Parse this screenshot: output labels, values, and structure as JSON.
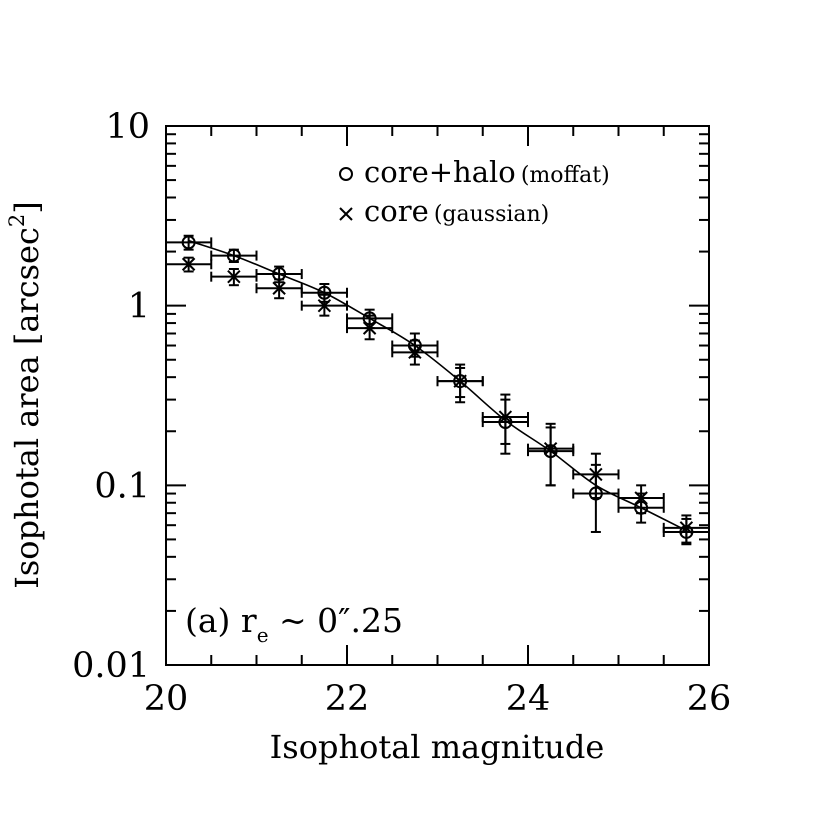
{
  "chart_data": {
    "type": "scatter",
    "xlabel": "Isophotal magnitude",
    "ylabel": "Isophotal area [arcsec",
    "ylabel_sup": "2",
    "ylabel_close": "]",
    "xlim": [
      20,
      26
    ],
    "ylim": [
      0.01,
      10
    ],
    "yscale": "log",
    "x_ticks": [
      "20",
      "22",
      "24",
      "26"
    ],
    "y_ticks": [
      "0.01",
      "0.1",
      "1",
      "10"
    ],
    "annotation": {
      "prefix": "(a) r",
      "subscript": "e",
      "suffix": " ~ 0″.25"
    },
    "legend": [
      {
        "symbol": "o",
        "label_main": "core+halo",
        "label_note": "(moffat)"
      },
      {
        "symbol": "×",
        "label_main": "core",
        "label_note": "(gaussian)"
      }
    ],
    "series": [
      {
        "name": "core+halo (moffat)",
        "marker": "circle",
        "x": [
          20.25,
          20.75,
          21.25,
          21.75,
          22.25,
          22.75,
          23.25,
          23.75,
          24.25,
          24.75,
          25.25,
          25.75
        ],
        "y": [
          2.25,
          1.9,
          1.5,
          1.18,
          0.85,
          0.6,
          0.38,
          0.225,
          0.155,
          0.09,
          0.075,
          0.055
        ],
        "yerr_low": [
          2.05,
          1.75,
          1.35,
          1.05,
          0.75,
          0.52,
          0.31,
          0.15,
          0.1,
          0.055,
          0.062,
          0.047
        ],
        "yerr_high": [
          2.45,
          2.05,
          1.65,
          1.32,
          0.95,
          0.7,
          0.47,
          0.32,
          0.22,
          0.13,
          0.09,
          0.065
        ],
        "xerr": 0.25
      },
      {
        "name": "core (gaussian)",
        "marker": "cross",
        "x": [
          20.25,
          20.75,
          21.25,
          21.75,
          22.25,
          22.75,
          23.25,
          23.75,
          24.25,
          24.75,
          25.25,
          25.75
        ],
        "y": [
          1.7,
          1.45,
          1.25,
          1.0,
          0.75,
          0.55,
          0.38,
          0.24,
          0.16,
          0.115,
          0.085,
          0.058
        ],
        "yerr_low": [
          1.55,
          1.3,
          1.1,
          0.88,
          0.65,
          0.47,
          0.29,
          0.17,
          0.1,
          0.085,
          0.07,
          0.048
        ],
        "yerr_high": [
          1.85,
          1.6,
          1.4,
          1.15,
          0.88,
          0.64,
          0.45,
          0.3,
          0.21,
          0.15,
          0.1,
          0.068
        ],
        "xerr": 0.25
      }
    ],
    "curve": {
      "x": [
        20.25,
        20.75,
        21.25,
        21.75,
        22.25,
        22.75,
        23.25,
        23.75,
        24.25,
        24.75,
        25.25,
        25.75
      ],
      "y": [
        2.3,
        1.9,
        1.5,
        1.18,
        0.85,
        0.6,
        0.38,
        0.23,
        0.155,
        0.1,
        0.075,
        0.056
      ]
    },
    "grid": false
  }
}
